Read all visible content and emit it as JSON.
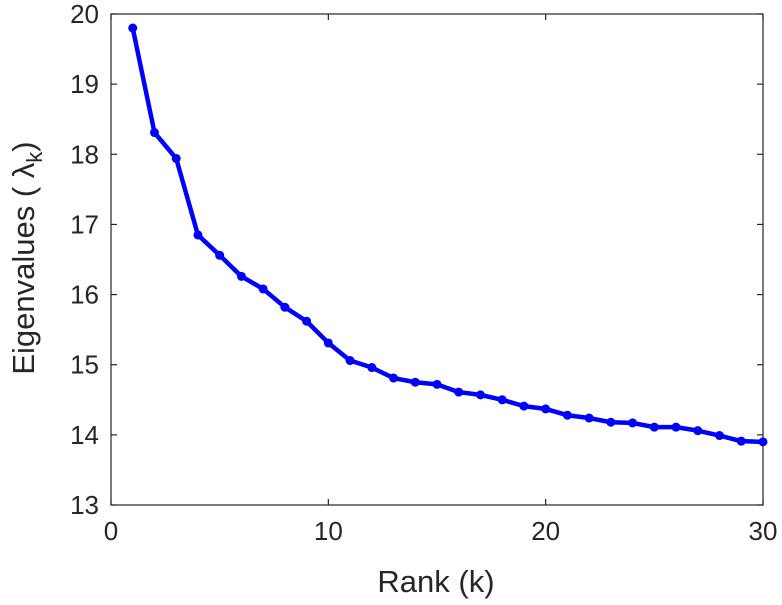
{
  "chart_data": {
    "type": "line",
    "title": "",
    "xlabel": "Rank (k)",
    "ylabel": "Eigenvalues (  λ",
    "ylabel_sub": "k",
    "ylabel_close": ")",
    "xlim": [
      0,
      30
    ],
    "ylim": [
      13,
      20
    ],
    "xticks": [
      0,
      10,
      20,
      30
    ],
    "yticks": [
      13,
      14,
      15,
      16,
      17,
      18,
      19,
      20
    ],
    "grid": false,
    "line_color": "#0000ff",
    "series": [
      {
        "name": "eigenvalues",
        "x": [
          1,
          2,
          3,
          4,
          5,
          6,
          7,
          8,
          9,
          10,
          11,
          12,
          13,
          14,
          15,
          16,
          17,
          18,
          19,
          20,
          21,
          22,
          23,
          24,
          25,
          26,
          27,
          28,
          29,
          30
        ],
        "y": [
          19.8,
          18.31,
          17.94,
          16.85,
          16.56,
          16.26,
          16.08,
          15.82,
          15.62,
          15.31,
          15.06,
          14.96,
          14.81,
          14.75,
          14.72,
          14.61,
          14.57,
          14.5,
          14.41,
          14.37,
          14.28,
          14.24,
          14.18,
          14.17,
          14.11,
          14.11,
          14.06,
          13.99,
          13.91,
          13.9
        ]
      }
    ]
  }
}
